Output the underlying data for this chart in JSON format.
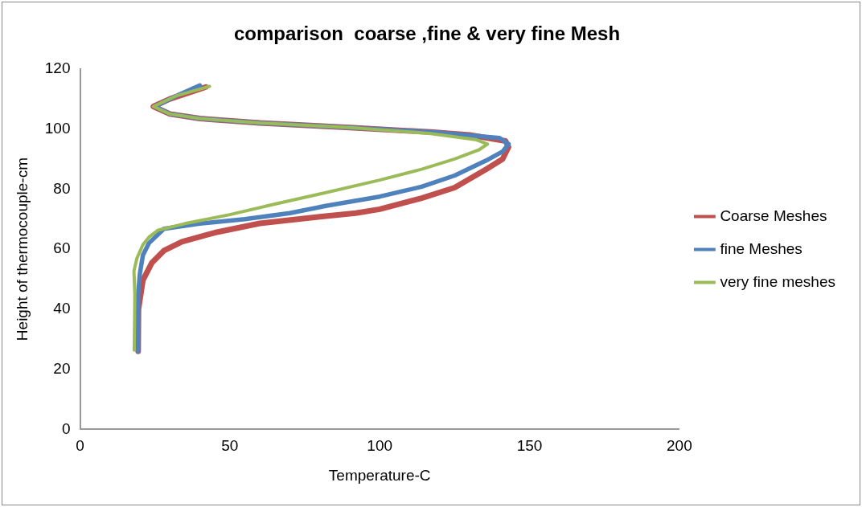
{
  "chart_data": {
    "type": "line",
    "title": "comparison  coarse ,fine & very fine Mesh",
    "xlabel": "Temperature-C",
    "ylabel": "Height of thermocouple-cm",
    "xlim": [
      0,
      200
    ],
    "xticks": [
      0,
      50,
      100,
      150,
      200
    ],
    "ylim": [
      0,
      120
    ],
    "yticks": [
      0,
      20,
      40,
      60,
      80,
      100,
      120
    ],
    "grid": false,
    "legend": "right",
    "marker": "none",
    "line_style": "solid",
    "series": [
      {
        "name": "Coarse Meshes",
        "color": "#c0504d",
        "x": [
          19.4,
          19.5,
          21,
          24,
          28,
          34,
          45,
          60,
          80,
          92,
          100,
          114,
          125,
          135.5,
          141,
          143,
          142,
          130,
          117,
          90,
          60,
          40,
          30,
          24.5,
          30,
          42
        ],
        "values": [
          26,
          40,
          49.7,
          55.5,
          59.5,
          62.5,
          65.5,
          68.6,
          70.8,
          72,
          73.3,
          77,
          80.5,
          86.6,
          90,
          94,
          96,
          98,
          99,
          100.5,
          102,
          103.5,
          105,
          107.5,
          110,
          114
        ]
      },
      {
        "name": "fine Meshes",
        "color": "#4f81bd",
        "x": [
          19.4,
          19.4,
          20,
          21,
          23,
          28,
          40,
          55,
          70,
          82,
          100,
          114,
          125,
          135.5,
          141,
          143,
          140,
          117,
          90,
          60,
          40,
          30,
          25,
          31,
          40
        ],
        "values": [
          26,
          45,
          52,
          58,
          62,
          66.8,
          68.5,
          70,
          72,
          74.4,
          77.5,
          80.8,
          84.5,
          89.5,
          92.5,
          95,
          97,
          99,
          100.5,
          102,
          103.5,
          105,
          107.5,
          110.5,
          114.5
        ]
      },
      {
        "name": "very fine meshes",
        "color": "#9bbb59",
        "x": [
          18.1,
          18.3,
          18,
          19,
          21,
          23,
          26,
          35,
          50,
          65,
          82,
          100,
          114,
          125,
          133,
          136,
          132,
          117,
          90,
          60,
          40,
          30,
          24.5,
          32,
          43.2
        ],
        "values": [
          26.4,
          45,
          52.7,
          57,
          61.5,
          64,
          66.3,
          68.5,
          71.5,
          75,
          78.8,
          83,
          86.6,
          90,
          93,
          95,
          96.5,
          98.5,
          100.5,
          102,
          103.5,
          105,
          107.5,
          111,
          114.2
        ]
      }
    ]
  }
}
